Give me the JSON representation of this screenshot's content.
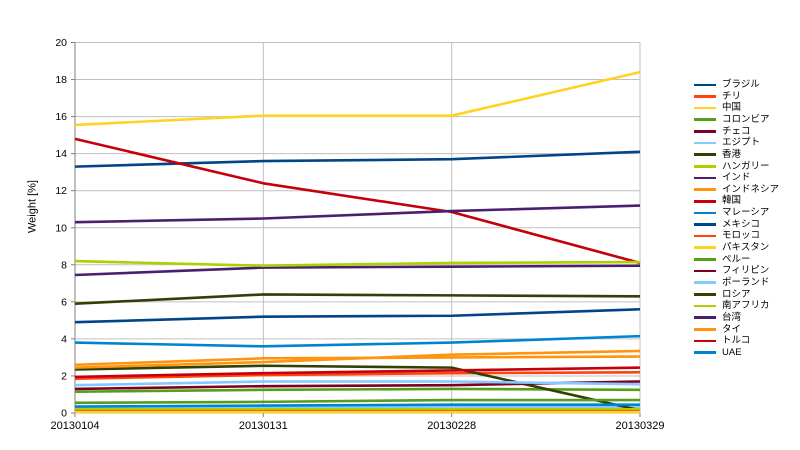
{
  "chart_data": {
    "type": "line",
    "title": "",
    "ylabel": "Weight [%]",
    "x_labels": [
      "20130104",
      "20130131",
      "20130228",
      "20130329"
    ],
    "ylim": [
      0,
      20
    ],
    "y_ticks": [
      0,
      2,
      4,
      6,
      8,
      10,
      12,
      14,
      16,
      18,
      20
    ],
    "grid": true,
    "legend_position": "right",
    "axis_color": "#808080",
    "grid_color": "#c0c0c0",
    "text_color": "#000000",
    "series": [
      {
        "name": "ブラジル",
        "color": "#004586",
        "values": [
          13.3,
          13.6,
          13.7,
          14.1
        ]
      },
      {
        "name": "チリ",
        "color": "#ff420e",
        "values": [
          1.85,
          2.05,
          2.15,
          2.2
        ]
      },
      {
        "name": "中国",
        "color": "#ffd320",
        "values": [
          15.55,
          16.05,
          16.05,
          18.4
        ]
      },
      {
        "name": "コロンビア",
        "color": "#579d1c",
        "values": [
          1.15,
          1.25,
          1.3,
          1.25
        ]
      },
      {
        "name": "チェコ",
        "color": "#7e0021",
        "values": [
          0.15,
          0.15,
          0.15,
          0.15
        ]
      },
      {
        "name": "エジプト",
        "color": "#83caff",
        "values": [
          0.3,
          0.3,
          0.35,
          0.3
        ]
      },
      {
        "name": "香港",
        "color": "#314004",
        "values": [
          2.35,
          2.55,
          2.45,
          0.15
        ]
      },
      {
        "name": "ハンガリー",
        "color": "#aecf00",
        "values": [
          0.2,
          0.2,
          0.2,
          0.2
        ]
      },
      {
        "name": "インド",
        "color": "#4b1f6f",
        "values": [
          7.45,
          7.85,
          7.9,
          7.95
        ]
      },
      {
        "name": "インドネシア",
        "color": "#ff950e",
        "values": [
          2.6,
          2.95,
          3.0,
          3.05
        ]
      },
      {
        "name": "韓国",
        "color": "#c5000b",
        "values": [
          14.8,
          12.4,
          10.85,
          8.1
        ]
      },
      {
        "name": "マレーシア",
        "color": "#0084d1",
        "values": [
          3.8,
          3.6,
          3.8,
          4.15
        ]
      },
      {
        "name": "メキシコ",
        "color": "#004586",
        "values": [
          4.9,
          5.2,
          5.25,
          5.6
        ]
      },
      {
        "name": "モロッコ",
        "color": "#ff420e",
        "values": [
          0.1,
          0.1,
          0.1,
          0.1
        ]
      },
      {
        "name": "パキスタン",
        "color": "#ffd320",
        "values": [
          0.05,
          0.05,
          0.05,
          0.05
        ]
      },
      {
        "name": "ペルー",
        "color": "#579d1c",
        "values": [
          0.55,
          0.6,
          0.7,
          0.7
        ]
      },
      {
        "name": "フィリピン",
        "color": "#7e0021",
        "values": [
          1.3,
          1.45,
          1.5,
          1.7
        ]
      },
      {
        "name": "ポーランド",
        "color": "#83caff",
        "values": [
          1.5,
          1.7,
          1.7,
          1.55
        ]
      },
      {
        "name": "ロシア",
        "color": "#314004",
        "values": [
          5.9,
          6.4,
          6.35,
          6.3
        ]
      },
      {
        "name": "南アフリカ",
        "color": "#aecf00",
        "values": [
          8.2,
          7.95,
          8.1,
          8.15
        ]
      },
      {
        "name": "台湾",
        "color": "#4b1f6f",
        "values": [
          10.3,
          10.5,
          10.9,
          11.2
        ]
      },
      {
        "name": "タイ",
        "color": "#ff950e",
        "values": [
          2.45,
          2.75,
          3.15,
          3.35
        ]
      },
      {
        "name": "トルコ",
        "color": "#c5000b",
        "values": [
          1.95,
          2.15,
          2.3,
          2.45
        ]
      },
      {
        "name": "UAE",
        "color": "#0084d1",
        "values": [
          0.35,
          0.4,
          0.45,
          0.45
        ]
      }
    ]
  }
}
